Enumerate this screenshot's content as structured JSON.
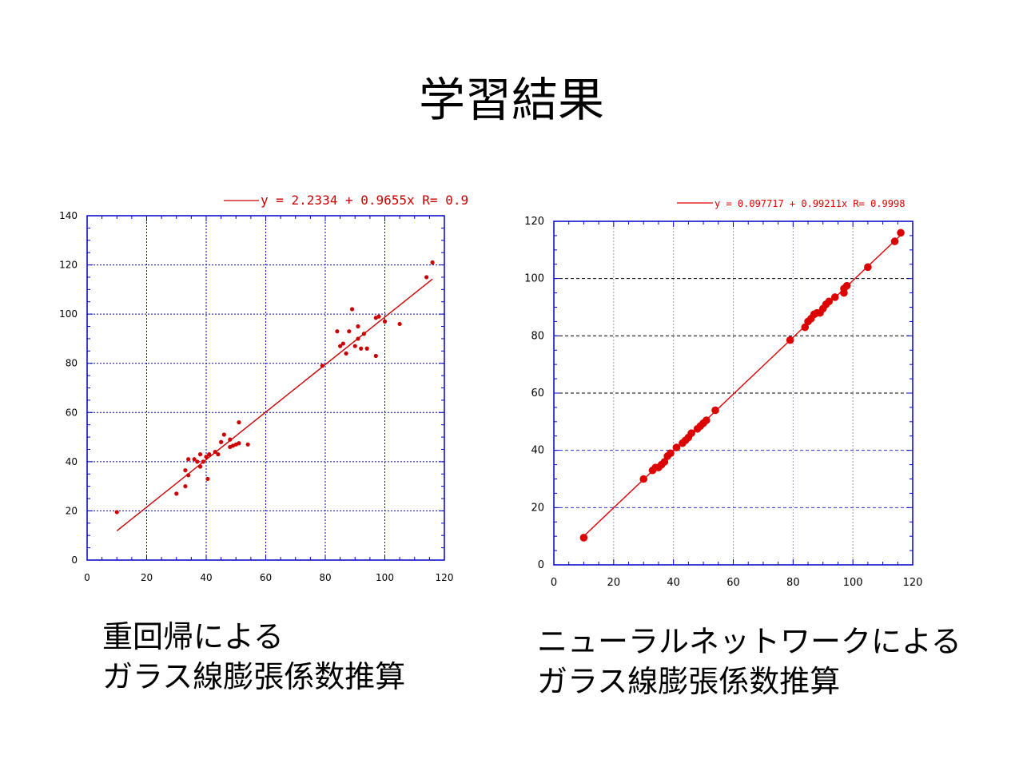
{
  "slide": {
    "title": "学習結果"
  },
  "chart_data": [
    {
      "type": "scatter",
      "legend_text": "y = 2.2334 + 0.9655x R= 0.9",
      "xlim": [
        0,
        120
      ],
      "ylim": [
        0,
        140
      ],
      "xticks": [
        0,
        20,
        40,
        60,
        80,
        100,
        120
      ],
      "yticks": [
        0,
        20,
        40,
        60,
        80,
        100,
        120,
        140
      ],
      "colors": {
        "data": "#cc0000",
        "grid": "#0000cc",
        "frame": "#0000cc"
      },
      "fit_line": {
        "intercept": 2.2334,
        "slope": 0.9655,
        "x_range": [
          10,
          116
        ]
      },
      "points": [
        [
          10,
          19.5
        ],
        [
          30,
          27
        ],
        [
          33,
          30
        ],
        [
          33,
          36.5
        ],
        [
          34,
          34.5
        ],
        [
          34,
          41
        ],
        [
          36,
          41
        ],
        [
          37,
          40
        ],
        [
          38,
          38
        ],
        [
          38,
          43
        ],
        [
          39,
          40
        ],
        [
          40,
          42
        ],
        [
          40.5,
          33
        ],
        [
          41,
          43
        ],
        [
          43,
          44
        ],
        [
          44,
          43
        ],
        [
          45,
          48
        ],
        [
          46,
          51
        ],
        [
          48,
          46
        ],
        [
          48,
          49
        ],
        [
          49,
          46.5
        ],
        [
          50,
          47
        ],
        [
          51,
          47.5
        ],
        [
          51,
          56
        ],
        [
          54,
          47
        ],
        [
          79,
          79
        ],
        [
          84,
          93
        ],
        [
          85,
          87
        ],
        [
          86,
          88
        ],
        [
          87,
          84
        ],
        [
          88,
          93
        ],
        [
          89,
          102
        ],
        [
          90,
          87
        ],
        [
          91,
          95
        ],
        [
          91,
          90
        ],
        [
          92,
          86
        ],
        [
          93,
          92
        ],
        [
          94,
          86
        ],
        [
          97,
          98.5
        ],
        [
          97,
          83
        ],
        [
          98,
          99
        ],
        [
          100,
          97
        ],
        [
          105,
          96
        ],
        [
          114,
          115
        ],
        [
          116,
          121
        ]
      ]
    },
    {
      "type": "scatter",
      "legend_text": "y = 0.097717 + 0.99211x R= 0.9998",
      "xlim": [
        0,
        120
      ],
      "ylim": [
        0,
        120
      ],
      "xticks": [
        0,
        20,
        40,
        60,
        80,
        100,
        120
      ],
      "yticks": [
        0,
        20,
        40,
        60,
        80,
        100,
        120
      ],
      "colors": {
        "data": "#dd0000",
        "grid": "#000000",
        "frame": "#0000cc"
      },
      "fit_line": {
        "intercept": 0.097717,
        "slope": 0.99211,
        "x_range": [
          10,
          116
        ]
      },
      "points": [
        [
          10,
          9.5
        ],
        [
          30,
          30
        ],
        [
          33,
          33
        ],
        [
          34,
          34
        ],
        [
          35,
          34
        ],
        [
          36,
          35
        ],
        [
          37,
          36
        ],
        [
          38,
          38
        ],
        [
          39,
          39
        ],
        [
          41,
          41
        ],
        [
          43,
          42.5
        ],
        [
          44,
          43.5
        ],
        [
          45,
          44.5
        ],
        [
          46,
          46
        ],
        [
          48,
          47.5
        ],
        [
          49,
          48.5
        ],
        [
          50,
          49.5
        ],
        [
          51,
          50.5
        ],
        [
          54,
          54
        ],
        [
          79,
          78.5
        ],
        [
          84,
          83
        ],
        [
          85,
          85
        ],
        [
          86,
          86
        ],
        [
          87,
          87.5
        ],
        [
          88,
          88
        ],
        [
          89,
          88
        ],
        [
          90,
          89.5
        ],
        [
          91,
          91
        ],
        [
          92,
          92
        ],
        [
          94,
          93.5
        ],
        [
          97,
          95
        ],
        [
          97,
          96.5
        ],
        [
          98,
          97.5
        ],
        [
          105,
          104
        ],
        [
          114,
          113
        ],
        [
          116,
          116
        ]
      ]
    }
  ],
  "captions": {
    "left_line1": "重回帰による",
    "left_line2": "ガラス線膨張係数推算",
    "right_line1": "ニューラルネットワークによる",
    "right_line2": "ガラス線膨張係数推算"
  }
}
